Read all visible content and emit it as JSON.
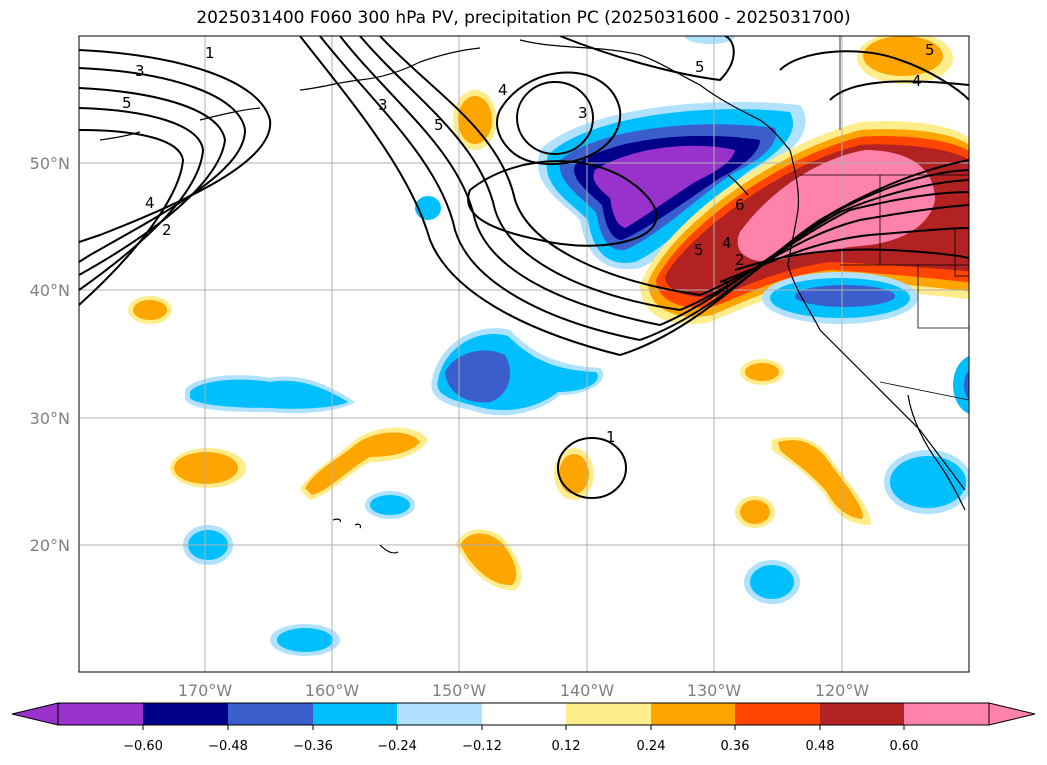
{
  "title": "2025031400 F060 300 hPa PV, precipitation PC (2025031600 - 2025031700)",
  "lat_labels": [
    "50°N",
    "40°N",
    "30°N",
    "20°N"
  ],
  "lon_labels": [
    "170°W",
    "160°W",
    "150°W",
    "140°W",
    "130°W",
    "120°W"
  ],
  "colorbar": {
    "ticks": [
      "−0.60",
      "−0.48",
      "−0.36",
      "−0.24",
      "−0.12",
      "0.12",
      "0.24",
      "0.36",
      "0.48",
      "0.60"
    ],
    "colors": [
      "#9932cc",
      "#00008b",
      "#3a5fcd",
      "#00bfff",
      "#b0e2ff",
      "#ffffff",
      "#ffec8b",
      "#ffa500",
      "#ff4500",
      "#b22222",
      "#ff82ab"
    ]
  },
  "contour_labels": [
    "1",
    "3",
    "5",
    "4",
    "2",
    "3",
    "5",
    "4",
    "3",
    "5",
    "5",
    "4",
    "6",
    "5",
    "4",
    "2",
    "1",
    "1"
  ],
  "colors": {
    "grid": "#b0b0b0",
    "tick_text": "#808080"
  }
}
